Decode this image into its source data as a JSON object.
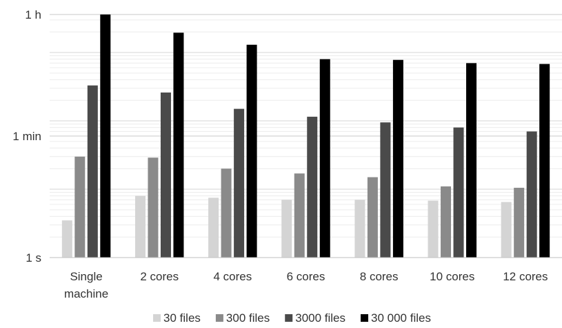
{
  "chart_data": {
    "type": "bar",
    "scale": "log",
    "unit": "seconds",
    "y_ticks": [
      {
        "value": 1,
        "label": "1 s"
      },
      {
        "value": 60,
        "label": "1 min"
      },
      {
        "value": 3600,
        "label": "1 h"
      }
    ],
    "ylim": [
      1,
      3600
    ],
    "grid": true,
    "legend_position": "bottom",
    "categories": [
      [
        "Single",
        "machine"
      ],
      [
        "2 cores"
      ],
      [
        "4 cores"
      ],
      [
        "6 cores"
      ],
      [
        "8 cores"
      ],
      [
        "10 cores"
      ],
      [
        "12 cores"
      ]
    ],
    "series": [
      {
        "name": "30 files",
        "color": "#d4d4d4",
        "values": [
          3.5,
          8,
          7.5,
          7,
          7,
          6.8,
          6.5
        ]
      },
      {
        "name": "300 files",
        "color": "#8a8a8a",
        "values": [
          30,
          29,
          20,
          17,
          15,
          11,
          10.5
        ]
      },
      {
        "name": "3000 files",
        "color": "#4a4a4a",
        "values": [
          330,
          260,
          150,
          115,
          95,
          80,
          70
        ]
      },
      {
        "name": "30 000 files",
        "color": "#000000",
        "values": [
          3600,
          1950,
          1300,
          800,
          780,
          700,
          680
        ]
      }
    ]
  }
}
